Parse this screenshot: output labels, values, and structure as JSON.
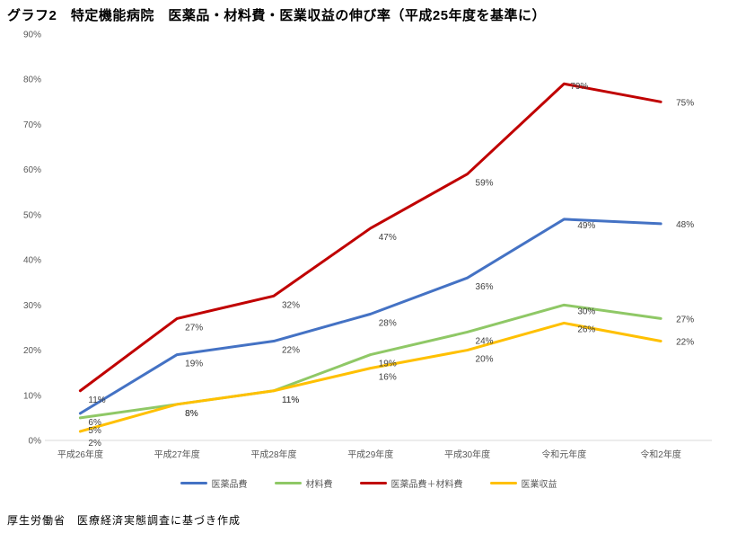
{
  "title": "グラフ2　特定機能病院　医薬品・材料費・医業収益の伸び率（平成25年度を基準に）",
  "source_note": "厚生労働省　医療経済実態調査に基づき作成",
  "chart_data": {
    "type": "line",
    "title": "グラフ2　特定機能病院　医薬品・材料費・医業収益の伸び率（平成25年度を基準に）",
    "categories": [
      "平成26年度",
      "平成27年度",
      "平成28年度",
      "平成29年度",
      "平成30年度",
      "令和元年度",
      "令和2年度"
    ],
    "series": [
      {
        "name": "医薬品費",
        "color": "#4472C4",
        "values": [
          6,
          19,
          22,
          28,
          36,
          49,
          48
        ]
      },
      {
        "name": "材料費",
        "color": "#8FC866",
        "values": [
          5,
          8,
          11,
          19,
          24,
          30,
          27
        ]
      },
      {
        "name": "医薬品費＋材料費",
        "color": "#C00000",
        "values": [
          11,
          27,
          32,
          47,
          59,
          79,
          75
        ]
      },
      {
        "name": "医業収益",
        "color": "#FFC000",
        "values": [
          2,
          8,
          11,
          16,
          20,
          26,
          22
        ]
      }
    ],
    "y_ticks": [
      "0%",
      "10%",
      "20%",
      "30%",
      "40%",
      "50%",
      "60%",
      "70%",
      "80%",
      "90%"
    ],
    "ylim": [
      0,
      90
    ],
    "xlabel": "",
    "ylabel": "",
    "grid": false,
    "data_label_suffix": "%",
    "legend_position": "bottom",
    "axis_color": "#D9D9D9",
    "tick_color": "#595959",
    "label_color": "#404040"
  }
}
